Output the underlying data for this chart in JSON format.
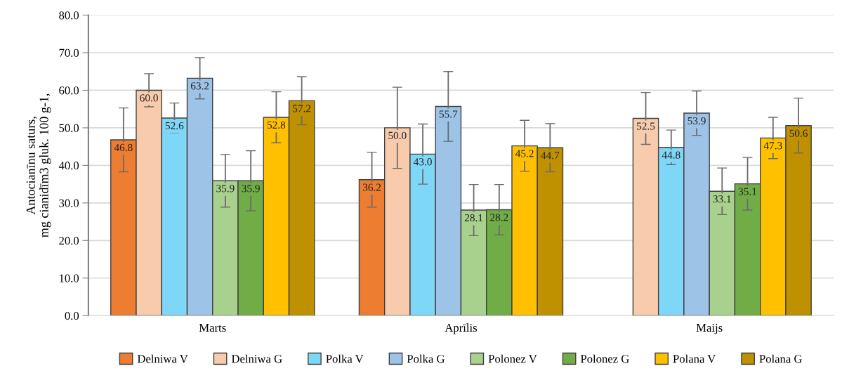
{
  "chart_data": {
    "type": "bar",
    "ylabel": "Antocianīnu saturs,\nmg cianidīm3 gluk. 100 g-1,",
    "categories": [
      "Marts",
      "Aprīlis",
      "Maijs"
    ],
    "ylim": [
      0,
      80
    ],
    "yticks": [
      {
        "value": 0,
        "label": "0.0"
      },
      {
        "value": 10,
        "label": "10.0"
      },
      {
        "value": 20,
        "label": "20.0"
      },
      {
        "value": 30,
        "label": "30.0"
      },
      {
        "value": 40,
        "label": "40.0"
      },
      {
        "value": 50,
        "label": "50.0"
      },
      {
        "value": 60,
        "label": "60.0"
      },
      {
        "value": 70,
        "label": "70.0"
      },
      {
        "value": 80,
        "label": "80.0"
      }
    ],
    "grid": "y",
    "legend": "bottom",
    "series": [
      {
        "name": "Delniwa V",
        "color": "#ed7d31",
        "values": [
          46.8,
          36.2,
          null
        ],
        "value_labels": [
          "46.8",
          "36.2",
          null
        ],
        "errors": [
          8.5,
          7.3,
          null
        ]
      },
      {
        "name": "Delniwa G",
        "color": "#f8cbad",
        "values": [
          60.0,
          50.0,
          52.5
        ],
        "value_labels": [
          "60.0",
          "50.0",
          "52.5"
        ],
        "errors": [
          4.4,
          10.8,
          6.9
        ]
      },
      {
        "name": "Polka V",
        "color": "#7fd7f7",
        "values": [
          52.6,
          43.0,
          44.8
        ],
        "value_labels": [
          "52.6",
          "43.0",
          "44.8"
        ],
        "errors": [
          4.0,
          8.0,
          4.6
        ]
      },
      {
        "name": "Polka G",
        "color": "#9dc3e6",
        "values": [
          63.2,
          55.7,
          53.9
        ],
        "value_labels": [
          "63.2",
          "55.7",
          "53.9"
        ],
        "errors": [
          5.5,
          9.3,
          5.9
        ]
      },
      {
        "name": "Polonez V",
        "color": "#a9d18e",
        "values": [
          35.9,
          28.1,
          33.1
        ],
        "value_labels": [
          "35.9",
          "28.1",
          "33.1"
        ],
        "errors": [
          7.0,
          6.8,
          6.2
        ]
      },
      {
        "name": "Polonez G",
        "color": "#70ad47",
        "values": [
          35.9,
          28.2,
          35.1
        ],
        "value_labels": [
          "35.9",
          "28.2",
          "35.1"
        ],
        "errors": [
          8.0,
          6.7,
          7.0
        ]
      },
      {
        "name": "Polana V",
        "color": "#ffc000",
        "values": [
          52.8,
          45.2,
          47.3
        ],
        "value_labels": [
          "52.8",
          "45.2",
          "47.3"
        ],
        "errors": [
          6.8,
          6.8,
          5.5
        ]
      },
      {
        "name": "Polana G",
        "color": "#bf9000",
        "values": [
          57.2,
          44.7,
          50.6
        ],
        "value_labels": [
          "57.2",
          "44.7",
          "50.6"
        ],
        "errors": [
          6.4,
          6.4,
          7.3
        ]
      }
    ]
  }
}
